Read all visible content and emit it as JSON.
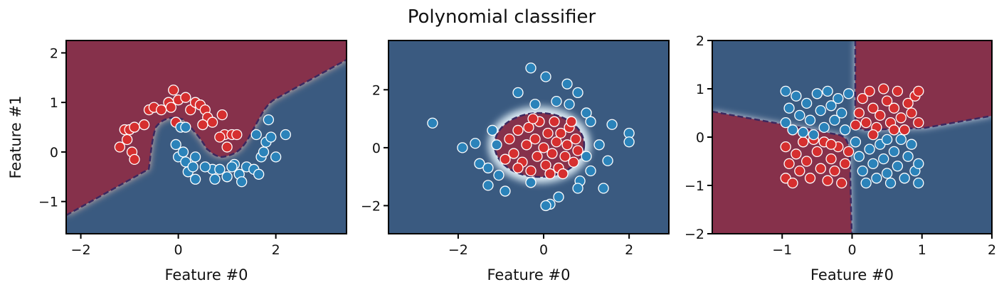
{
  "title": "Polynomial classifier",
  "chart_data": [
    {
      "type": "scatter",
      "xlabel": "Feature #0",
      "ylabel": "Feature #1",
      "xlim": [
        -2.3,
        3.45
      ],
      "ylim": [
        -1.65,
        2.25
      ],
      "xticks": [
        {
          "value": -2,
          "label": "−2"
        },
        0,
        2
      ],
      "yticks": [
        {
          "value": -1,
          "label": "−1"
        },
        0,
        1,
        2
      ],
      "series": [
        {
          "color": "#d62f2f",
          "x": [
            -1.1,
            -1.0,
            -0.9,
            -1.05,
            -0.95,
            -1.2,
            -0.9,
            -0.7,
            -0.6,
            -0.5,
            -0.35,
            -0.2,
            -0.15,
            -0.1,
            0.0,
            0.15,
            0.25,
            0.35,
            0.45,
            0.55,
            0.6,
            0.7,
            0.9,
            0.5,
            0.95,
            1.1,
            1.2,
            1.0,
            0.85,
            -0.05
          ],
          "y": [
            0.45,
            0.45,
            0.5,
            0.25,
            0.0,
            0.1,
            -0.15,
            0.55,
            0.85,
            0.9,
            0.85,
            1.0,
            0.9,
            1.25,
            1.05,
            1.1,
            0.85,
            1.0,
            0.95,
            0.85,
            0.7,
            0.6,
            0.75,
            0.55,
            0.35,
            0.35,
            0.35,
            0.1,
            0.3,
            0.6
          ]
        },
        {
          "color": "#2b83ba",
          "x": [
            -0.05,
            0.0,
            0.1,
            0.15,
            0.2,
            0.35,
            0.3,
            0.35,
            0.05,
            0.15,
            0.7,
            0.75,
            0.85,
            1.0,
            1.15,
            1.25,
            1.3,
            1.4,
            1.55,
            1.65,
            1.7,
            1.75,
            1.8,
            1.9,
            2.0,
            2.2,
            1.85,
            1.6,
            0.55,
            1.1
          ],
          "y": [
            0.15,
            -0.1,
            0.0,
            -0.2,
            -0.4,
            -0.1,
            -0.3,
            -0.55,
            0.5,
            0.5,
            -0.35,
            -0.55,
            -0.35,
            -0.5,
            -0.25,
            -0.45,
            -0.6,
            -0.3,
            -0.35,
            -0.45,
            -0.1,
            0.0,
            0.2,
            0.3,
            -0.1,
            0.35,
            0.65,
            0.35,
            -0.3,
            -0.3
          ]
        }
      ]
    },
    {
      "type": "scatter",
      "xlabel": "Feature #0",
      "xlim": [
        -3.63,
        2.93
      ],
      "ylim": [
        -2.97,
        3.7
      ],
      "xticks": [
        {
          "value": -2,
          "label": "−2"
        },
        0,
        2
      ],
      "yticks": [
        {
          "value": -2,
          "label": "−2"
        },
        0,
        2
      ],
      "series": [
        {
          "color": "#d62f2f",
          "x": [
            -0.8,
            -0.7,
            -0.6,
            -0.5,
            -0.4,
            -0.35,
            -0.3,
            -0.2,
            -0.15,
            -0.1,
            0.0,
            0.05,
            0.1,
            0.2,
            0.25,
            0.3,
            0.35,
            0.4,
            0.5,
            0.55,
            0.6,
            0.7,
            0.75,
            0.8,
            -0.6,
            0.15,
            -0.9,
            -0.25,
            0.45,
            0.65
          ],
          "y": [
            0.3,
            -0.2,
            0.6,
            -0.5,
            0.1,
            0.7,
            -0.8,
            0.3,
            -0.3,
            0.9,
            0.0,
            -0.6,
            0.5,
            -0.2,
            0.9,
            0.2,
            -0.7,
            0.5,
            -0.3,
            0.1,
            0.7,
            -0.5,
            0.3,
            -0.1,
            -0.7,
            -0.9,
            -0.4,
            1.0,
            -0.9,
            0.9
          ]
        },
        {
          "color": "#2b83ba",
          "x": [
            -2.6,
            -1.9,
            -1.6,
            -1.5,
            -1.3,
            -1.2,
            -1.1,
            -1.05,
            -1.3,
            -0.9,
            -0.6,
            -0.3,
            0.05,
            0.3,
            0.6,
            0.55,
            0.8,
            1.0,
            1.1,
            1.6,
            2.0,
            2.0,
            1.3,
            1.5,
            1.4,
            1.1,
            0.85,
            0.35,
            0.15,
            0.05,
            -0.3,
            0.8,
            -0.2,
            1.0
          ],
          "y": [
            0.85,
            0.0,
            0.15,
            -0.55,
            -0.7,
            0.6,
            0.1,
            -0.95,
            -1.3,
            -1.5,
            1.9,
            2.75,
            2.45,
            1.6,
            1.5,
            2.2,
            1.9,
            1.2,
            0.9,
            0.8,
            0.5,
            0.2,
            0.1,
            -0.45,
            -1.4,
            -0.8,
            -1.15,
            -1.7,
            -1.95,
            -2.0,
            -1.2,
            -1.4,
            1.5,
            -0.3
          ]
        }
      ]
    },
    {
      "type": "scatter",
      "xlabel": "Feature #0",
      "xlim": [
        -2,
        2
      ],
      "ylim": [
        -2,
        2
      ],
      "xticks": [
        {
          "value": -1,
          "label": "−1"
        },
        0,
        1,
        2
      ],
      "yticks": [
        {
          "value": -2,
          "label": "−2"
        },
        {
          "value": -1,
          "label": "−1"
        },
        0,
        1,
        2
      ],
      "series": [
        {
          "color": "#d62f2f",
          "x": [
            0.1,
            0.15,
            0.2,
            0.25,
            0.3,
            0.35,
            0.4,
            0.45,
            0.5,
            0.55,
            0.6,
            0.65,
            0.7,
            0.75,
            0.8,
            0.85,
            0.9,
            0.95,
            0.95,
            0.05,
            0.3,
            0.6,
            -0.95,
            -0.9,
            -0.95,
            -0.8,
            -0.75,
            -0.7,
            -0.65,
            -0.6,
            -0.5,
            -0.45,
            -0.4,
            -0.35,
            -0.3,
            -0.25,
            -0.2,
            -0.15,
            -0.1,
            -0.05,
            -0.85,
            -0.55,
            -0.3
          ],
          "y": [
            0.5,
            0.8,
            0.3,
            0.95,
            0.6,
            0.2,
            0.45,
            1.0,
            0.75,
            0.3,
            0.6,
            0.95,
            0.4,
            0.15,
            0.7,
            0.5,
            0.85,
            0.3,
            0.95,
            0.25,
            0.05,
            0.15,
            -0.2,
            -0.55,
            -0.85,
            -0.35,
            -0.7,
            -0.1,
            -0.5,
            -0.85,
            -0.3,
            -0.65,
            -0.1,
            -0.9,
            -0.45,
            -0.7,
            -0.2,
            -0.95,
            -0.55,
            -0.3,
            -0.95,
            -0.05,
            -0.15
          ]
        },
        {
          "color": "#2b83ba",
          "x": [
            -0.95,
            -0.9,
            -0.95,
            -0.8,
            -0.75,
            -0.7,
            -0.65,
            -0.6,
            -0.5,
            -0.45,
            -0.4,
            -0.35,
            -0.3,
            -0.25,
            -0.2,
            -0.15,
            -0.1,
            -0.05,
            -0.55,
            -0.85,
            0.05,
            0.1,
            0.15,
            0.2,
            0.25,
            0.3,
            0.35,
            0.4,
            0.45,
            0.5,
            0.55,
            0.6,
            0.65,
            0.7,
            0.75,
            0.8,
            0.85,
            0.9,
            0.95,
            0.95,
            0.5
          ],
          "y": [
            0.95,
            0.6,
            0.3,
            0.85,
            0.45,
            0.1,
            0.7,
            0.35,
            0.9,
            0.55,
            0.2,
            0.95,
            0.65,
            0.35,
            0.8,
            0.5,
            0.15,
            0.9,
            0.05,
            0.15,
            -0.1,
            -0.4,
            -0.7,
            -0.95,
            -0.25,
            -0.55,
            -0.85,
            -0.15,
            -0.45,
            -0.75,
            -0.95,
            -0.3,
            -0.6,
            -0.05,
            -0.85,
            -0.4,
            -0.15,
            -0.7,
            -0.55,
            -0.95,
            -0.05
          ]
        }
      ]
    }
  ]
}
